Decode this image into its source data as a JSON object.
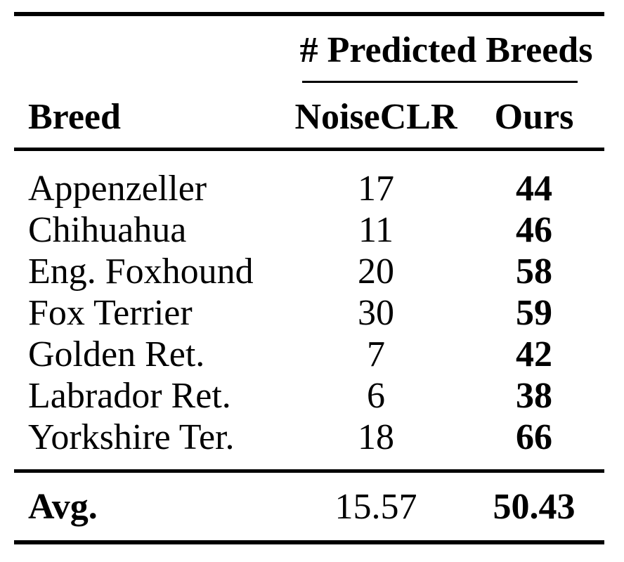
{
  "table": {
    "span_header": "# Predicted Breeds",
    "columns": {
      "breed": "Breed",
      "noiseclr": "NoiseCLR",
      "ours": "Ours"
    },
    "rows": [
      {
        "breed": "Appenzeller",
        "noiseclr": "17",
        "ours": "44"
      },
      {
        "breed": "Chihuahua",
        "noiseclr": "11",
        "ours": "46"
      },
      {
        "breed": "Eng. Foxhound",
        "noiseclr": "20",
        "ours": "58"
      },
      {
        "breed": "Fox Terrier",
        "noiseclr": "30",
        "ours": "59"
      },
      {
        "breed": "Golden Ret.",
        "noiseclr": "7",
        "ours": "42"
      },
      {
        "breed": "Labrador Ret.",
        "noiseclr": "6",
        "ours": "38"
      },
      {
        "breed": "Yorkshire Ter.",
        "noiseclr": "18",
        "ours": "66"
      }
    ],
    "summary": {
      "label": "Avg.",
      "noiseclr": "15.57",
      "ours": "50.43"
    },
    "colors": {
      "text": "#000000",
      "rule": "#000000",
      "background": "#ffffff"
    }
  }
}
